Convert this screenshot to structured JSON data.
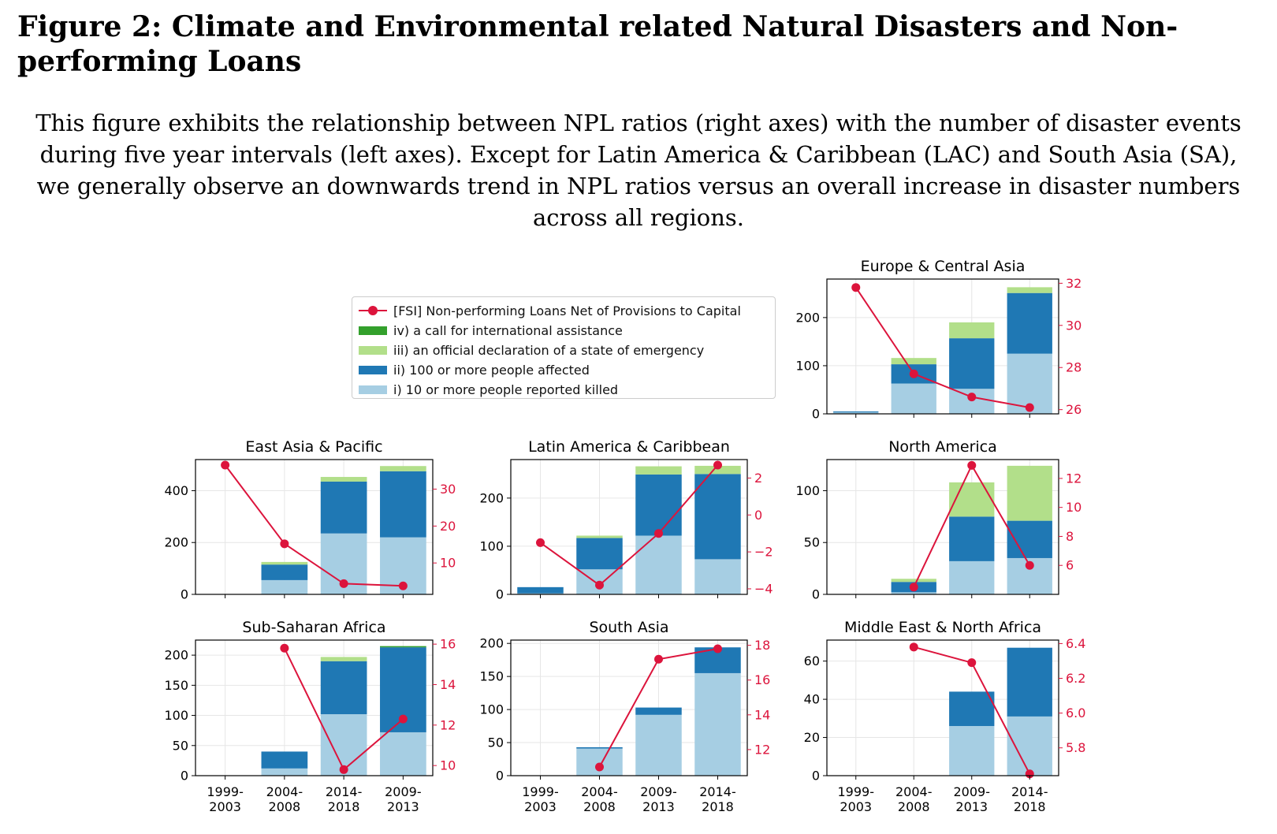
{
  "figure": {
    "title": "Figure 2: Climate and Environmental related Natural Disasters and Non-performing Loans",
    "caption": "This figure exhibits the relationship between NPL ratios (right axes) with the number of disaster events during five year intervals (left axes). Except for Latin America & Caribbean (LAC) and South Asia (SA), we generally observe an downwards trend in NPL ratios versus an overall increase in disaster numbers across all regions."
  },
  "colors": {
    "killed": "#a6cee3",
    "affected": "#1f78b4",
    "emergency": "#b2df8a",
    "assistance": "#33a02c",
    "npl": "#dc143c"
  },
  "legend": {
    "items": [
      {
        "key": "npl",
        "label": "[FSI] Non-performing Loans Net of Provisions to Capital",
        "kind": "line"
      },
      {
        "key": "assistance",
        "label": "iv) a call for international assistance",
        "kind": "patch"
      },
      {
        "key": "emergency",
        "label": "iii) an official declaration of a state of emergency",
        "kind": "patch"
      },
      {
        "key": "affected",
        "label": "ii) 100 or more people affected",
        "kind": "patch"
      },
      {
        "key": "killed",
        "label": "i) 10 or more people reported killed",
        "kind": "patch"
      }
    ]
  },
  "chart_data": [
    {
      "type": "bar",
      "title": "Europe & Central Asia",
      "categories": [
        "",
        "",
        "",
        ""
      ],
      "ylim": [
        0,
        280
      ],
      "yticks": [
        0,
        100,
        200
      ],
      "y2lim": [
        25.8,
        32.2
      ],
      "y2ticks": [
        26,
        28,
        30,
        32
      ],
      "stacks": {
        "killed": [
          3,
          63,
          52,
          125
        ],
        "affected": [
          2,
          40,
          105,
          126
        ],
        "emergency": [
          0,
          13,
          33,
          12
        ],
        "assistance": [
          0,
          0,
          0,
          0
        ]
      },
      "npl": [
        31.8,
        27.7,
        26.6,
        26.1
      ]
    },
    {
      "type": "bar",
      "title": "East Asia & Pacific",
      "categories": [
        "",
        "",
        "",
        ""
      ],
      "ylim": [
        0,
        520
      ],
      "yticks": [
        0,
        200,
        400
      ],
      "y2lim": [
        1.5,
        38
      ],
      "y2ticks": [
        10,
        20,
        30
      ],
      "stacks": {
        "killed": [
          0,
          55,
          235,
          220
        ],
        "affected": [
          0,
          60,
          200,
          255
        ],
        "emergency": [
          0,
          10,
          18,
          20
        ],
        "assistance": [
          0,
          0,
          0,
          0
        ]
      },
      "npl": [
        36.5,
        15.2,
        4.4,
        3.8
      ]
    },
    {
      "type": "bar",
      "title": "Latin America & Caribbean",
      "categories": [
        "",
        "",
        "",
        ""
      ],
      "ylim": [
        0,
        280
      ],
      "yticks": [
        0,
        100,
        200
      ],
      "y2lim": [
        -4.3,
        3.0
      ],
      "y2ticks": [
        -4,
        -2,
        0,
        2
      ],
      "stacks": {
        "killed": [
          2,
          52,
          122,
          73
        ],
        "affected": [
          13,
          65,
          127,
          177
        ],
        "emergency": [
          0,
          5,
          17,
          17
        ],
        "assistance": [
          0,
          0,
          0,
          0
        ]
      },
      "npl": [
        -1.5,
        -3.8,
        -1.0,
        2.7
      ]
    },
    {
      "type": "bar",
      "title": "North America",
      "categories": [
        "",
        "",
        "",
        ""
      ],
      "ylim": [
        0,
        130
      ],
      "yticks": [
        0,
        50,
        100
      ],
      "y2lim": [
        4.0,
        13.3
      ],
      "y2ticks": [
        6,
        8,
        10,
        12
      ],
      "stacks": {
        "killed": [
          0,
          2,
          32,
          35
        ],
        "affected": [
          0,
          10,
          43,
          36
        ],
        "emergency": [
          0,
          3,
          33,
          53
        ],
        "assistance": [
          0,
          0,
          0,
          0
        ]
      },
      "npl": [
        null,
        4.5,
        12.9,
        6.0
      ]
    },
    {
      "type": "bar",
      "title": "Sub-Saharan Africa",
      "categories": [
        "1999-\n2003",
        "2004-\n2008",
        "2014-\n2018",
        "2009-\n2013"
      ],
      "ylim": [
        0,
        225
      ],
      "yticks": [
        0,
        50,
        100,
        150,
        200
      ],
      "y2lim": [
        9.5,
        16.2
      ],
      "y2ticks": [
        10,
        12,
        14,
        16
      ],
      "stacks": {
        "killed": [
          0,
          12,
          102,
          72
        ],
        "affected": [
          0,
          28,
          88,
          141
        ],
        "emergency": [
          0,
          0,
          7,
          0
        ],
        "assistance": [
          0,
          0,
          0,
          2
        ]
      },
      "npl": [
        null,
        15.8,
        9.8,
        12.3
      ]
    },
    {
      "type": "bar",
      "title": "South Asia",
      "categories": [
        "1999-\n2003",
        "2004-\n2008",
        "2009-\n2013",
        "2014-\n2018"
      ],
      "ylim": [
        0,
        205
      ],
      "yticks": [
        0,
        50,
        100,
        150,
        200
      ],
      "y2lim": [
        10.5,
        18.3
      ],
      "y2ticks": [
        12,
        14,
        16,
        18
      ],
      "stacks": {
        "killed": [
          0,
          41,
          92,
          155
        ],
        "affected": [
          0,
          2,
          11,
          39
        ],
        "emergency": [
          0,
          0,
          0,
          0
        ],
        "assistance": [
          0,
          0,
          0,
          0
        ]
      },
      "npl": [
        null,
        11.0,
        17.2,
        17.8
      ]
    },
    {
      "type": "bar",
      "title": "Middle East & North Africa",
      "categories": [
        "1999-\n2003",
        "2004-\n2008",
        "2009-\n2013",
        "2014-\n2018"
      ],
      "ylim": [
        0,
        71
      ],
      "yticks": [
        0,
        20,
        40,
        60
      ],
      "y2lim": [
        5.64,
        6.42
      ],
      "y2ticks": [
        5.8,
        6.0,
        6.2,
        6.4
      ],
      "stacks": {
        "killed": [
          0,
          0,
          26,
          31
        ],
        "affected": [
          0,
          0,
          18,
          36
        ],
        "emergency": [
          0,
          0,
          0,
          0
        ],
        "assistance": [
          0,
          0,
          0,
          0
        ]
      },
      "npl": [
        null,
        6.38,
        6.29,
        5.65
      ]
    }
  ]
}
